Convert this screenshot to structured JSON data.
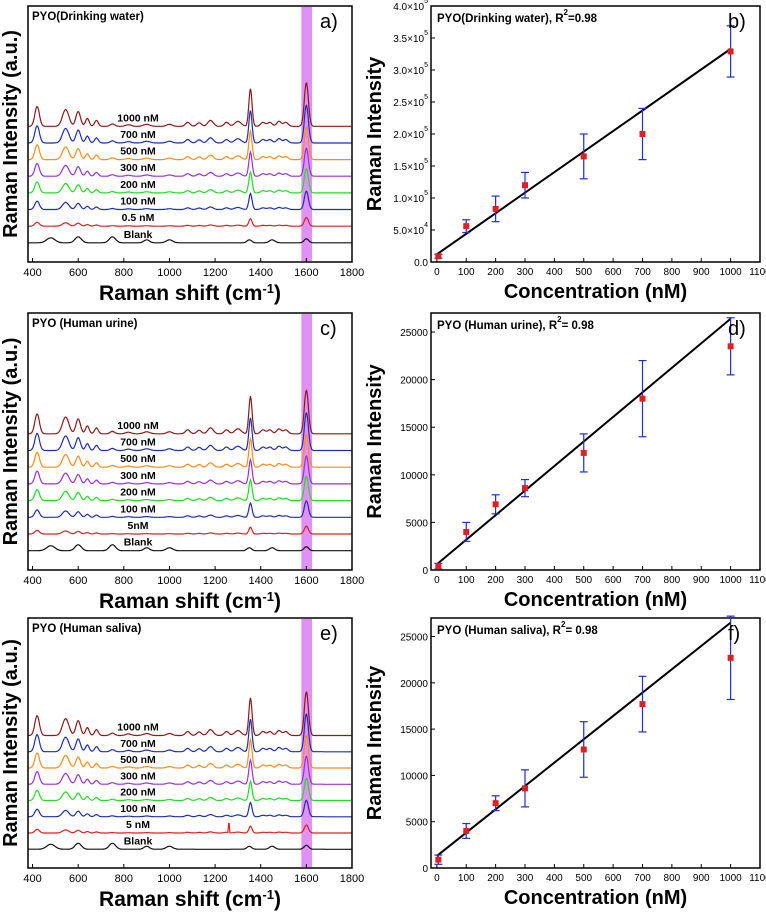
{
  "chart_data": [
    {
      "panel": "a)",
      "type": "line",
      "title": "PYO(Drinking water)",
      "xlabel": "Raman shift (cm",
      "xlabel_sup": "-1",
      "xlabel_end": ")",
      "ylabel": "Raman Intensity (a.u.)",
      "xlim": [
        380,
        1800
      ],
      "xticks": [
        400,
        600,
        800,
        1000,
        1200,
        1400,
        1600,
        1800
      ],
      "highlight_band": [
        1578,
        1625
      ],
      "highlight_color": "#d56cf0",
      "series": [
        {
          "name": "1000 nM",
          "color": "#8b1a1a",
          "scale": 1.0
        },
        {
          "name": "700 nM",
          "color": "#1f2fb0",
          "scale": 0.85
        },
        {
          "name": "500 nM",
          "color": "#ff8c1a",
          "scale": 0.72
        },
        {
          "name": "300 nM",
          "color": "#9b30d9",
          "scale": 0.6
        },
        {
          "name": "200 nM",
          "color": "#22dd22",
          "scale": 0.5
        },
        {
          "name": "100 nM",
          "color": "#1f2fb0",
          "scale": 0.35
        },
        {
          "name": "0.5 nM",
          "color": "#e02020",
          "scale": 0.1
        },
        {
          "name": "Blank",
          "color": "#111111",
          "scale": 0.03
        }
      ]
    },
    {
      "panel": "b)",
      "type": "scatter",
      "title": "PYO(Drinking water), R",
      "title_sup": "2",
      "title_end": "=0.98",
      "xlabel": "Concentration (nM)",
      "ylabel": "Raman Intensity",
      "xlim": [
        -20,
        1100
      ],
      "ylim": [
        0,
        400000
      ],
      "xticks": [
        0,
        100,
        200,
        300,
        400,
        500,
        600,
        700,
        800,
        900,
        1000,
        1100
      ],
      "yticks": [
        {
          "value": 0,
          "label": "0.0"
        },
        {
          "value": 50000,
          "label": "5.0×10",
          "exp": "4"
        },
        {
          "value": 100000,
          "label": "1.0×10",
          "exp": "5"
        },
        {
          "value": 150000,
          "label": "1.5×10",
          "exp": "5"
        },
        {
          "value": 200000,
          "label": "2.0×10",
          "exp": "5"
        },
        {
          "value": 250000,
          "label": "2.5×10",
          "exp": "5"
        },
        {
          "value": 300000,
          "label": "3.0×10",
          "exp": "5"
        },
        {
          "value": 350000,
          "label": "3.5×10",
          "exp": "5"
        },
        {
          "value": 400000,
          "label": "4.0×10",
          "exp": "5"
        }
      ],
      "x": [
        5,
        100,
        200,
        300,
        500,
        700,
        1000
      ],
      "y": [
        9000,
        56000,
        83000,
        120000,
        165000,
        200000,
        329000
      ],
      "yerr": [
        3000,
        10000,
        20000,
        20000,
        35000,
        40000,
        40000
      ],
      "fit": [
        [
          0,
          12000
        ],
        [
          1000,
          333000
        ]
      ]
    },
    {
      "panel": "c)",
      "type": "line",
      "title": "PYO (Human urine)",
      "xlabel": "Raman shift (cm",
      "xlabel_sup": "-1",
      "xlabel_end": ")",
      "ylabel": "Raman Intensity (a.u.)",
      "xlim": [
        380,
        1800
      ],
      "xticks": [
        400,
        600,
        800,
        1000,
        1200,
        1400,
        1600,
        1800
      ],
      "highlight_band": [
        1578,
        1625
      ],
      "highlight_color": "#d56cf0",
      "series": [
        {
          "name": "1000 nM",
          "color": "#8b1a1a",
          "scale": 1.0
        },
        {
          "name": "700 nM",
          "color": "#1f2fb0",
          "scale": 0.85
        },
        {
          "name": "500 nM",
          "color": "#ff8c1a",
          "scale": 0.72
        },
        {
          "name": "300 nM",
          "color": "#9b30d9",
          "scale": 0.6
        },
        {
          "name": "200 nM",
          "color": "#22dd22",
          "scale": 0.5
        },
        {
          "name": "100 nM",
          "color": "#1f2fb0",
          "scale": 0.3
        },
        {
          "name": "5nM",
          "color": "#e02020",
          "scale": 0.08
        },
        {
          "name": "Blank",
          "color": "#111111",
          "scale": 0.03
        }
      ]
    },
    {
      "panel": "d)",
      "type": "scatter",
      "title": "PYO (Human urine), R",
      "title_sup": "2",
      "title_end": "= 0.98",
      "xlabel": "Concentration (nM)",
      "ylabel": "Raman Intensity",
      "xlim": [
        -20,
        1100
      ],
      "ylim": [
        0,
        27000
      ],
      "xticks": [
        0,
        100,
        200,
        300,
        400,
        500,
        600,
        700,
        800,
        900,
        1000,
        1100
      ],
      "yticks": [
        {
          "value": 0,
          "label": "0"
        },
        {
          "value": 5000,
          "label": "5000"
        },
        {
          "value": 10000,
          "label": "10000"
        },
        {
          "value": 15000,
          "label": "15000"
        },
        {
          "value": 20000,
          "label": "20000"
        },
        {
          "value": 25000,
          "label": "25000"
        }
      ],
      "x": [
        5,
        100,
        200,
        300,
        500,
        700,
        1000
      ],
      "y": [
        400,
        4000,
        6900,
        8600,
        12300,
        18000,
        23500
      ],
      "yerr": [
        300,
        1000,
        1000,
        900,
        2000,
        4000,
        3000
      ],
      "fit": [
        [
          0,
          600
        ],
        [
          1000,
          26400
        ]
      ]
    },
    {
      "panel": "e)",
      "type": "line",
      "title": "PYO (Human saliva)",
      "xlabel": "Raman shift (cm",
      "xlabel_sup": "-1",
      "xlabel_end": ")",
      "ylabel": "Raman Intensity (a.u.)",
      "xlim": [
        380,
        1800
      ],
      "xticks": [
        400,
        600,
        800,
        1000,
        1200,
        1400,
        1600,
        1800
      ],
      "highlight_band": [
        1578,
        1625
      ],
      "highlight_color": "#d56cf0",
      "series": [
        {
          "name": "1000 nM",
          "color": "#8b1a1a",
          "scale": 1.0
        },
        {
          "name": "700 nM",
          "color": "#1f2fb0",
          "scale": 0.85
        },
        {
          "name": "500 nM",
          "color": "#ff8c1a",
          "scale": 0.72
        },
        {
          "name": "300 nM",
          "color": "#9b30d9",
          "scale": 0.6
        },
        {
          "name": "200 nM",
          "color": "#22dd22",
          "scale": 0.45
        },
        {
          "name": "100 nM",
          "color": "#1f2fb0",
          "scale": 0.3
        },
        {
          "name": "5 nM",
          "color": "#e02020",
          "scale": 0.08
        },
        {
          "name": "Blank",
          "color": "#111111",
          "scale": 0.03
        }
      ]
    },
    {
      "panel": "f)",
      "type": "scatter",
      "title": "PYO (Human saliva), R",
      "title_sup": "2",
      "title_end": "= 0.98",
      "xlabel": "Concentration (nM)",
      "ylabel": "Raman Intensity",
      "xlim": [
        -20,
        1100
      ],
      "ylim": [
        0,
        27000
      ],
      "xticks": [
        0,
        100,
        200,
        300,
        400,
        500,
        600,
        700,
        800,
        900,
        1000,
        1100
      ],
      "yticks": [
        {
          "value": 0,
          "label": "0"
        },
        {
          "value": 5000,
          "label": "5000"
        },
        {
          "value": 10000,
          "label": "10000"
        },
        {
          "value": 15000,
          "label": "15000"
        },
        {
          "value": 20000,
          "label": "20000"
        },
        {
          "value": 25000,
          "label": "25000"
        }
      ],
      "x": [
        5,
        100,
        200,
        300,
        500,
        700,
        1000
      ],
      "y": [
        900,
        4000,
        7000,
        8600,
        12800,
        17700,
        22700
      ],
      "yerr": [
        500,
        800,
        800,
        2000,
        3000,
        3000,
        4500
      ],
      "fit": [
        [
          0,
          1300
        ],
        [
          1000,
          26500
        ]
      ]
    }
  ],
  "colors": {
    "marker": "#e02020",
    "errorbar": "#1f2fd0",
    "fit": "#000000",
    "axis": "#000000"
  }
}
